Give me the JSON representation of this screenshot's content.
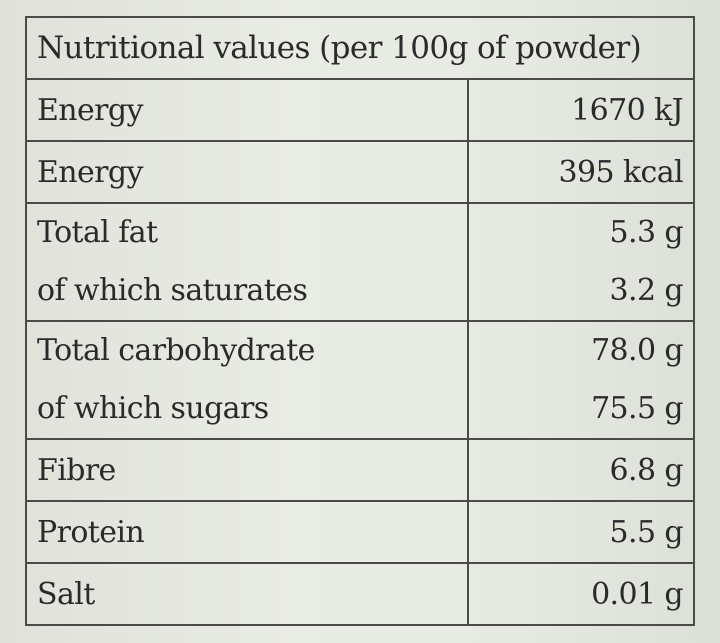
{
  "table": {
    "header": "Nutritional values (per 100g of powder)",
    "rows": [
      {
        "lines": [
          {
            "label": "Energy",
            "value": "1670 kJ"
          }
        ]
      },
      {
        "lines": [
          {
            "label": "Energy",
            "value": "395 kcal"
          }
        ]
      },
      {
        "lines": [
          {
            "label": "Total fat",
            "value": "5.3 g"
          },
          {
            "label": "of which saturates",
            "value": "3.2 g"
          }
        ]
      },
      {
        "lines": [
          {
            "label": "Total carbohydrate",
            "value": "78.0 g"
          },
          {
            "label": "of which sugars",
            "value": "75.5 g"
          }
        ]
      },
      {
        "lines": [
          {
            "label": "Fibre",
            "value": "6.8 g"
          }
        ]
      },
      {
        "lines": [
          {
            "label": "Protein",
            "value": "5.5 g"
          }
        ]
      },
      {
        "lines": [
          {
            "label": "Salt",
            "value": "0.01 g"
          }
        ]
      }
    ]
  }
}
